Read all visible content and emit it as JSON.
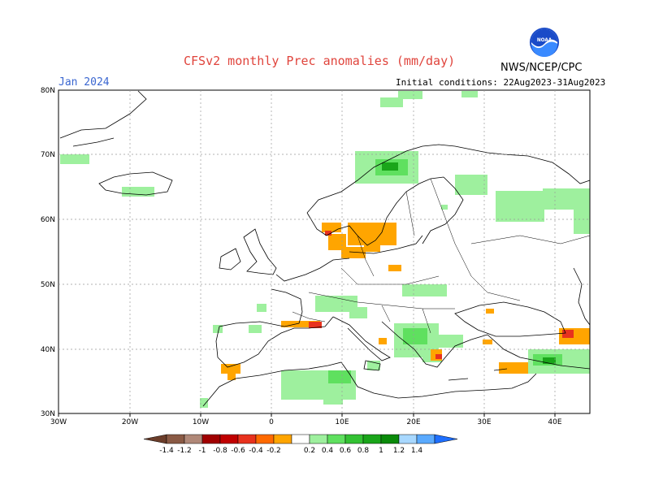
{
  "header": {
    "title": "CFSv2 monthly Prec anomalies (mm/day)",
    "month": "Jan 2024",
    "initial_conditions": "Initial conditions: 22Aug2023-31Aug2023",
    "agency": "NWS/NCEP/CPC",
    "logo_text": "NOAA"
  },
  "axes": {
    "lat_labels": [
      "80N",
      "70N",
      "60N",
      "50N",
      "40N",
      "30N"
    ],
    "lon_labels": [
      "30W",
      "20W",
      "10W",
      "0",
      "10E",
      "20E",
      "30E",
      "40E"
    ]
  },
  "legend": {
    "labels": [
      "-1.4",
      "-1.2",
      "-1",
      "-0.8",
      "-0.6",
      "-0.4",
      "-0.2",
      "0.2",
      "0.4",
      "0.6",
      "0.8",
      "1",
      "1.2",
      "1.4"
    ],
    "colors": [
      "#6b3d2a",
      "#8a5a45",
      "#b08878",
      "#a00000",
      "#c00000",
      "#e8321e",
      "#ff6a00",
      "#ffa500",
      "#ffffff",
      "#9ef09e",
      "#5fe05f",
      "#33c233",
      "#1aa51a",
      "#0a8a0a",
      "#a8d8ff",
      "#5aaaff",
      "#1e6fff"
    ]
  },
  "colors": {
    "title": "#e0443c",
    "month": "#3a66d0",
    "wet_light": "#9ef09e",
    "wet_mid": "#5fe05f",
    "wet_dark": "#1aa51a",
    "dry_orange": "#ffa500",
    "dry_dark": "#ff6a00",
    "dry_red": "#e8321e"
  }
}
